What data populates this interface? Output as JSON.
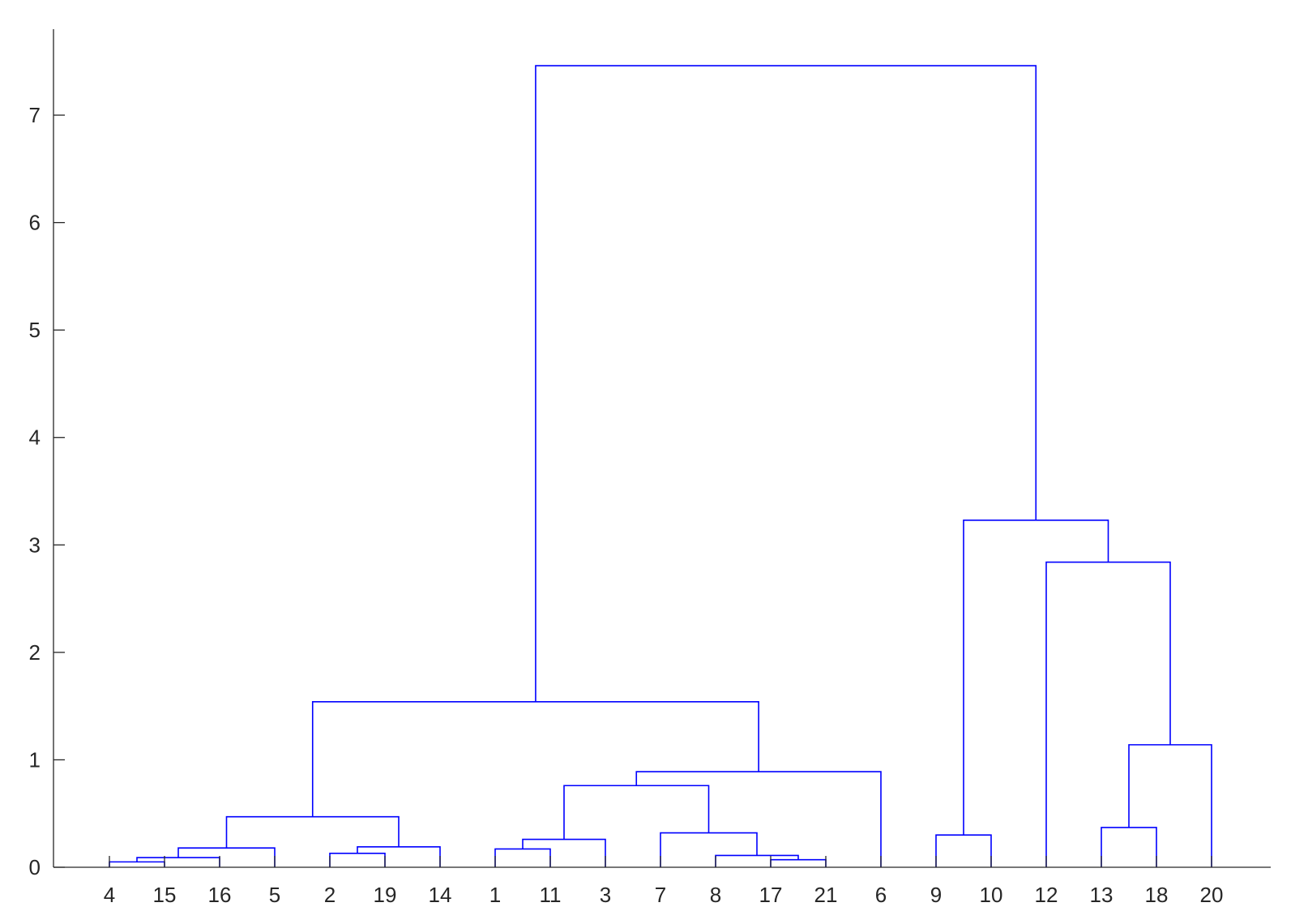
{
  "chart_data": {
    "type": "dendrogram",
    "title": "",
    "xlabel": "",
    "ylabel": "",
    "ylim": [
      0,
      7.8
    ],
    "yticks": [
      0,
      1,
      2,
      3,
      4,
      5,
      6,
      7
    ],
    "leaf_order": [
      "4",
      "15",
      "16",
      "5",
      "2",
      "19",
      "14",
      "1",
      "11",
      "3",
      "7",
      "8",
      "17",
      "21",
      "6",
      "9",
      "10",
      "12",
      "13",
      "18",
      "20"
    ],
    "link_color": "#0000ff",
    "grid": false,
    "merges": [
      {
        "id": "c4_15",
        "left": "4",
        "right": "15",
        "height": 0.05
      },
      {
        "id": "c17_21",
        "left": "17",
        "right": "21",
        "height": 0.07
      },
      {
        "id": "c4_15_16",
        "left": "c4_15",
        "right": "16",
        "height": 0.09
      },
      {
        "id": "c8_17_21",
        "left": "8",
        "right": "c17_21",
        "height": 0.11
      },
      {
        "id": "c2_19",
        "left": "2",
        "right": "19",
        "height": 0.13
      },
      {
        "id": "c1_11",
        "left": "1",
        "right": "11",
        "height": 0.17
      },
      {
        "id": "c4_15_16_5",
        "left": "c4_15_16",
        "right": "5",
        "height": 0.18
      },
      {
        "id": "c2_19_14",
        "left": "c2_19",
        "right": "14",
        "height": 0.19
      },
      {
        "id": "c1_11_3",
        "left": "c1_11",
        "right": "3",
        "height": 0.26
      },
      {
        "id": "c9_10",
        "left": "9",
        "right": "10",
        "height": 0.3
      },
      {
        "id": "c7_8_17_21",
        "left": "7",
        "right": "c8_17_21",
        "height": 0.32
      },
      {
        "id": "c13_18",
        "left": "13",
        "right": "18",
        "height": 0.37
      },
      {
        "id": "cLeftA",
        "left": "c4_15_16_5",
        "right": "c2_19_14",
        "height": 0.47
      },
      {
        "id": "cMidA",
        "left": "c1_11_3",
        "right": "c7_8_17_21",
        "height": 0.76
      },
      {
        "id": "cMidB",
        "left": "cMidA",
        "right": "6",
        "height": 0.89
      },
      {
        "id": "c13_18_20",
        "left": "c13_18",
        "right": "20",
        "height": 1.14
      },
      {
        "id": "cLeft",
        "left": "cLeftA",
        "right": "cMidB",
        "height": 1.54
      },
      {
        "id": "cRightB",
        "left": "12",
        "right": "c13_18_20",
        "height": 2.84
      },
      {
        "id": "cRight",
        "left": "c9_10",
        "right": "cRightB",
        "height": 3.23
      },
      {
        "id": "cRoot",
        "left": "cLeft",
        "right": "cRight",
        "height": 7.46
      }
    ]
  }
}
